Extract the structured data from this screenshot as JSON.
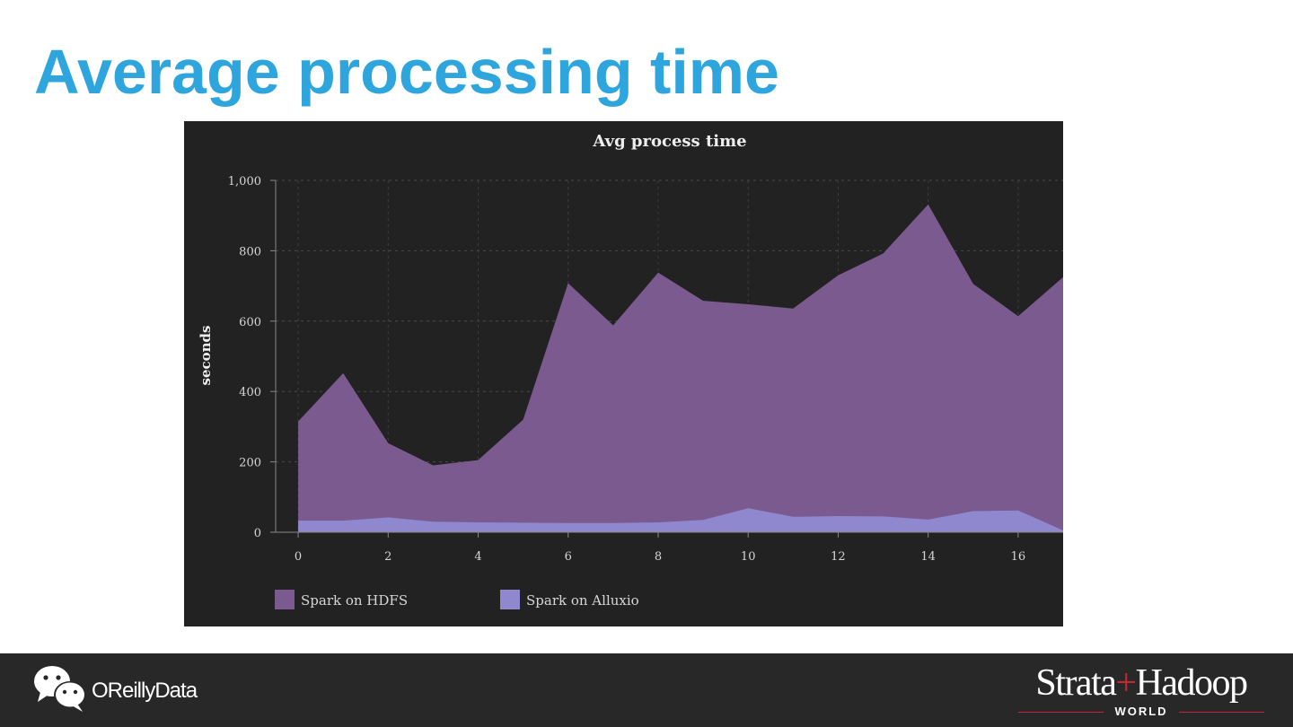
{
  "slide": {
    "title": "Average processing time"
  },
  "chart_data": {
    "type": "area",
    "title": "Avg process time",
    "xlabel": "",
    "ylabel": "seconds",
    "x": [
      0,
      1,
      2,
      3,
      4,
      5,
      6,
      7,
      8,
      9,
      10,
      11,
      12,
      13,
      14,
      15,
      16,
      17
    ],
    "xlim": [
      -0.5,
      17
    ],
    "ylim": [
      0,
      1000
    ],
    "xticks": [
      0,
      2,
      4,
      6,
      8,
      10,
      12,
      14,
      16
    ],
    "yticks": [
      0,
      200,
      400,
      600,
      800,
      1000
    ],
    "ytick_labels": [
      "0",
      "200",
      "400",
      "600",
      "800",
      "1,000"
    ],
    "grid": true,
    "legend": "bottom-left",
    "background": "#222222",
    "series": [
      {
        "name": "Spark on HDFS",
        "color": "#7b5a8f",
        "values": [
          315,
          452,
          253,
          190,
          205,
          320,
          708,
          588,
          738,
          658,
          648,
          636,
          730,
          792,
          932,
          706,
          614,
          725
        ]
      },
      {
        "name": "Spark on Alluxio",
        "color": "#8f88cf",
        "values": [
          33,
          33,
          42,
          30,
          28,
          27,
          26,
          26,
          28,
          35,
          68,
          44,
          46,
          45,
          36,
          60,
          62,
          5
        ]
      }
    ]
  },
  "footer": {
    "social_icon": "wechat-icon",
    "social_handle": "OReillyData",
    "brand_left": "Strata",
    "brand_plus": "+",
    "brand_right": "Hadoop",
    "brand_sub": "WORLD",
    "brand_color": "#c8243a"
  }
}
